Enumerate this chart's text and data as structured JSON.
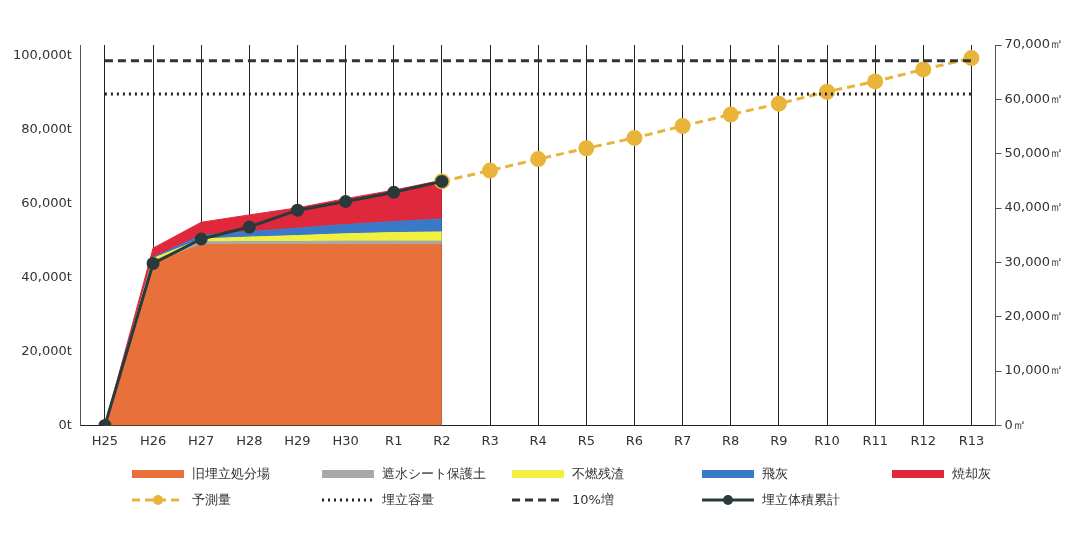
{
  "chart_data": {
    "type": "area",
    "categories": [
      "H25",
      "H26",
      "H27",
      "H28",
      "H29",
      "H30",
      "R1",
      "R2",
      "R3",
      "R4",
      "R5",
      "R6",
      "R7",
      "R8",
      "R9",
      "R10",
      "R11",
      "R12",
      "R13"
    ],
    "stacked": true,
    "series": [
      {
        "name": "旧埋立処分場",
        "color": "#e8703a",
        "values": [
          0,
          44000,
          49000,
          49000,
          49000,
          49000,
          49000,
          49000,
          null,
          null,
          null,
          null,
          null,
          null,
          null,
          null,
          null,
          null,
          null
        ]
      },
      {
        "name": "遮水シート保護土",
        "color": "#a8a8a8",
        "values": [
          0,
          500,
          700,
          800,
          800,
          900,
          900,
          900,
          null,
          null,
          null,
          null,
          null,
          null,
          null,
          null,
          null,
          null,
          null
        ]
      },
      {
        "name": "不燃残渣",
        "color": "#f0f040",
        "values": [
          0,
          700,
          800,
          1200,
          1600,
          2000,
          2300,
          2500,
          null,
          null,
          null,
          null,
          null,
          null,
          null,
          null,
          null,
          null,
          null
        ]
      },
      {
        "name": "飛灰",
        "color": "#3a78c8",
        "values": [
          0,
          300,
          1000,
          1500,
          2000,
          2500,
          3000,
          3500,
          null,
          null,
          null,
          null,
          null,
          null,
          null,
          null,
          null,
          null,
          null
        ]
      },
      {
        "name": "焼却灰",
        "color": "#e0283c",
        "values": [
          0,
          2500,
          3500,
          4500,
          5500,
          7000,
          8500,
          10500,
          null,
          null,
          null,
          null,
          null,
          null,
          null,
          null,
          null,
          null,
          null
        ]
      },
      {
        "name": "予測量",
        "type": "line",
        "axis": "y2",
        "marker": "circle",
        "line_style": "dashed",
        "color": "#e8b43a",
        "values": [
          null,
          null,
          null,
          null,
          null,
          null,
          null,
          44900,
          46900,
          49000,
          51000,
          52900,
          55100,
          57200,
          59200,
          61400,
          63300,
          65500,
          67600
        ]
      },
      {
        "name": "埋立容量",
        "type": "line",
        "axis": "y2",
        "marker": "none",
        "line_style": "dotted",
        "color": "#222222",
        "values": [
          61000,
          61000,
          61000,
          61000,
          61000,
          61000,
          61000,
          61000,
          61000,
          61000,
          61000,
          61000,
          61000,
          61000,
          61000,
          61000,
          61000,
          61000,
          61000
        ]
      },
      {
        "name": "10%増",
        "type": "line",
        "axis": "y2",
        "marker": "none",
        "line_style": "dashed",
        "color": "#333333",
        "values": [
          67100,
          67100,
          67100,
          67100,
          67100,
          67100,
          67100,
          67100,
          67100,
          67100,
          67100,
          67100,
          67100,
          67100,
          67100,
          67100,
          67100,
          67100,
          67100
        ]
      },
      {
        "name": "埋立体積累計",
        "type": "line",
        "axis": "y2",
        "marker": "circle",
        "line_style": "solid",
        "color": "#2a3a3a",
        "values": [
          0,
          29800,
          34300,
          36500,
          39600,
          41200,
          42900,
          44900,
          null,
          null,
          null,
          null,
          null,
          null,
          null,
          null,
          null,
          null,
          null
        ]
      }
    ],
    "ylim": [
      0,
      103000
    ],
    "yticks": [
      {
        "value": 0,
        "label": "0t"
      },
      {
        "value": 20000,
        "label": "20,000t"
      },
      {
        "value": 40000,
        "label": "40,000t"
      },
      {
        "value": 60000,
        "label": "60,000t"
      },
      {
        "value": 80000,
        "label": "80,000t"
      },
      {
        "value": 100000,
        "label": "100,000t"
      }
    ],
    "y2lim": [
      0,
      70000
    ],
    "y2ticks": [
      {
        "value": 0,
        "label": "0㎡"
      },
      {
        "value": 10000,
        "label": "10,000㎡"
      },
      {
        "value": 20000,
        "label": "20,000㎡"
      },
      {
        "value": 30000,
        "label": "30,000㎡"
      },
      {
        "value": 40000,
        "label": "40,000㎡"
      },
      {
        "value": 50000,
        "label": "50,000㎡"
      },
      {
        "value": 60000,
        "label": "60,000㎡"
      },
      {
        "value": 70000,
        "label": "70,000㎡"
      }
    ],
    "grid": "x",
    "legend": "bottom"
  }
}
